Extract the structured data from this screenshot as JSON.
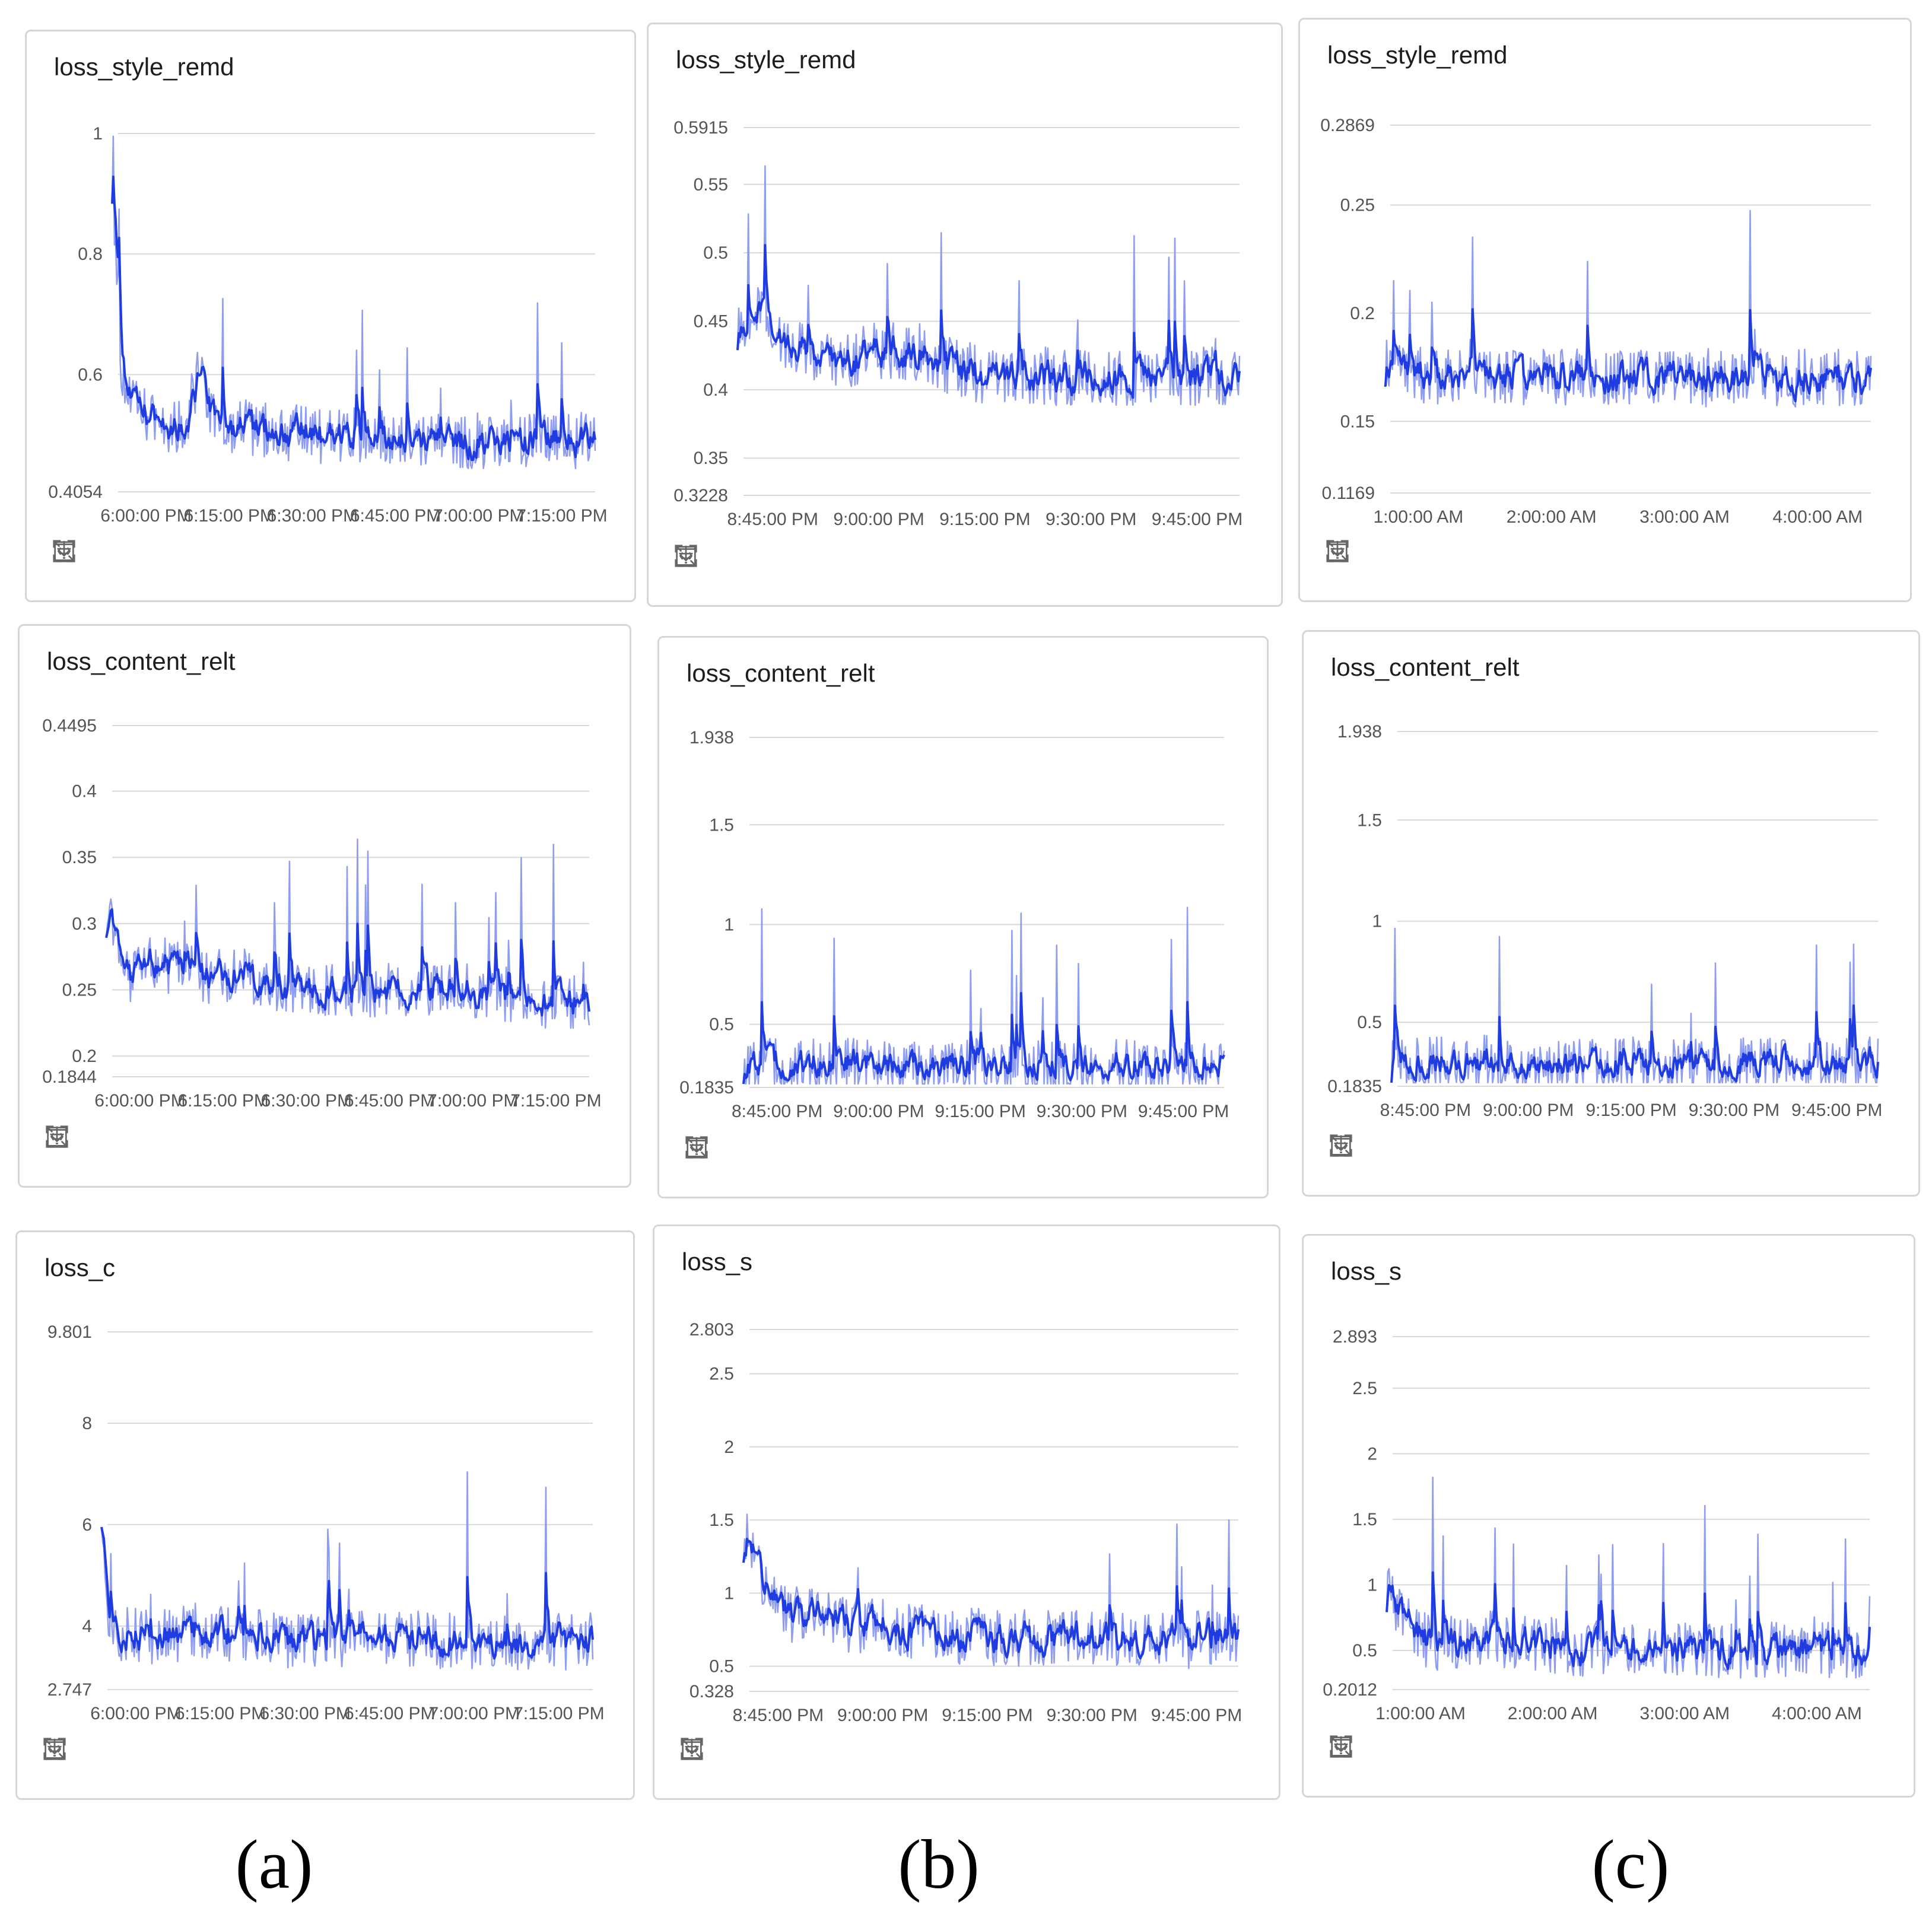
{
  "colors": {
    "line_light": "#8f9df0",
    "line_dark": "#1f3ce0",
    "grid": "#d9d9d9",
    "card_border": "#d6d6d6"
  },
  "toolbar_icons": [
    "expand-icon",
    "fit-icon",
    "filter-icon",
    "download-icon"
  ],
  "column_labels": [
    "(a)",
    "(b)",
    "(c)"
  ],
  "chart_data": [
    {
      "id": "a1",
      "type": "line",
      "title": "loss_style_remd",
      "yticks": [
        "1",
        "0.8",
        "0.6",
        "0.4054"
      ],
      "ylim": [
        0.4054,
        1.0
      ],
      "xticks": [
        "6:00:00 PM",
        "6:15:00 PM",
        "6:30:00 PM",
        "6:45:00 PM",
        "7:00:00 PM",
        "7:15:00 PM"
      ],
      "series": [
        {
          "x": [
            0,
            0.01,
            0.02,
            0.04,
            0.07,
            0.1,
            0.15,
            0.18,
            0.2,
            0.23,
            0.3,
            0.4,
            0.5,
            0.6,
            0.7,
            0.8,
            0.9,
            1.0
          ],
          "values": [
            0.93,
            0.75,
            0.6,
            0.55,
            0.53,
            0.52,
            0.51,
            0.6,
            0.54,
            0.52,
            0.51,
            0.5,
            0.5,
            0.49,
            0.49,
            0.49,
            0.49,
            0.49
          ]
        }
      ]
    },
    {
      "id": "b1",
      "type": "line",
      "title": "loss_style_remd",
      "yticks": [
        "0.5915",
        "0.55",
        "0.5",
        "0.45",
        "0.4",
        "0.35",
        "0.3228"
      ],
      "ylim": [
        0.3228,
        0.5915
      ],
      "xticks": [
        "8:45:00 PM",
        "9:00:00 PM",
        "9:15:00 PM",
        "9:30:00 PM",
        "9:45:00 PM"
      ],
      "series": [
        {
          "x": [
            0,
            0.05,
            0.1,
            0.2,
            0.3,
            0.4,
            0.5,
            0.6,
            0.7,
            0.8,
            0.9,
            1.0
          ],
          "values": [
            0.45,
            0.46,
            0.43,
            0.42,
            0.43,
            0.42,
            0.41,
            0.41,
            0.41,
            0.41,
            0.41,
            0.41
          ]
        }
      ]
    },
    {
      "id": "c1",
      "type": "line",
      "title": "loss_style_remd",
      "yticks": [
        "0.2869",
        "0.25",
        "0.2",
        "0.15",
        "0.1169"
      ],
      "ylim": [
        0.1169,
        0.2869
      ],
      "xticks": [
        "1:00:00 AM",
        "2:00:00 AM",
        "3:00:00 AM",
        "4:00:00 AM"
      ],
      "series": [
        {
          "x": [
            0,
            0.1,
            0.2,
            0.3,
            0.4,
            0.5,
            0.6,
            0.7,
            0.8,
            0.9,
            1.0
          ],
          "values": [
            0.18,
            0.17,
            0.17,
            0.17,
            0.17,
            0.17,
            0.17,
            0.17,
            0.17,
            0.17,
            0.17
          ]
        }
      ]
    },
    {
      "id": "a2",
      "type": "line",
      "title": "loss_content_relt",
      "yticks": [
        "0.4495",
        "0.4",
        "0.35",
        "0.3",
        "0.25",
        "0.2",
        "0.1844"
      ],
      "ylim": [
        0.1844,
        0.4495
      ],
      "xticks": [
        "6:00:00 PM",
        "6:15:00 PM",
        "6:30:00 PM",
        "6:45:00 PM",
        "7:00:00 PM",
        "7:15:00 PM"
      ],
      "series": [
        {
          "x": [
            0,
            0.05,
            0.1,
            0.2,
            0.3,
            0.4,
            0.5,
            0.6,
            0.7,
            0.8,
            0.9,
            1.0
          ],
          "values": [
            0.31,
            0.26,
            0.27,
            0.26,
            0.26,
            0.25,
            0.25,
            0.25,
            0.25,
            0.25,
            0.24,
            0.24
          ]
        }
      ]
    },
    {
      "id": "b2",
      "type": "line",
      "title": "loss_content_relt",
      "yticks": [
        "1.938",
        "1.5",
        "1",
        "0.5",
        "0.1835"
      ],
      "ylim": [
        0.1835,
        1.938
      ],
      "xticks": [
        "8:45:00 PM",
        "9:00:00 PM",
        "9:15:00 PM",
        "9:30:00 PM",
        "9:45:00 PM"
      ],
      "series": [
        {
          "x": [
            0,
            0.1,
            0.2,
            0.3,
            0.4,
            0.5,
            0.6,
            0.7,
            0.8,
            0.9,
            1.0
          ],
          "values": [
            0.3,
            0.28,
            0.3,
            0.28,
            0.28,
            0.29,
            0.28,
            0.28,
            0.29,
            0.28,
            0.29
          ]
        }
      ]
    },
    {
      "id": "c2",
      "type": "line",
      "title": "loss_content_relt",
      "yticks": [
        "1.938",
        "1.5",
        "1",
        "0.5",
        "0.1835"
      ],
      "ylim": [
        0.1835,
        1.938
      ],
      "xticks": [
        "8:45:00 PM",
        "9:00:00 PM",
        "9:15:00 PM",
        "9:30:00 PM",
        "9:45:00 PM"
      ],
      "series": [
        {
          "x": [
            0,
            0.1,
            0.2,
            0.3,
            0.4,
            0.5,
            0.6,
            0.7,
            0.8,
            0.9,
            1.0
          ],
          "values": [
            0.3,
            0.29,
            0.3,
            0.28,
            0.28,
            0.29,
            0.28,
            0.28,
            0.29,
            0.28,
            0.29
          ]
        }
      ]
    },
    {
      "id": "a3",
      "type": "line",
      "title": "loss_c",
      "yticks": [
        "9.801",
        "8",
        "6",
        "4",
        "2.747"
      ],
      "ylim": [
        2.747,
        9.801
      ],
      "xticks": [
        "6:00:00 PM",
        "6:15:00 PM",
        "6:30:00 PM",
        "6:45:00 PM",
        "7:00:00 PM",
        "7:15:00 PM"
      ],
      "series": [
        {
          "x": [
            0,
            0.01,
            0.03,
            0.1,
            0.2,
            0.3,
            0.4,
            0.5,
            0.6,
            0.7,
            0.8,
            0.9,
            1.0
          ],
          "values": [
            6.5,
            4.5,
            3.8,
            3.8,
            3.9,
            3.8,
            3.7,
            3.7,
            3.8,
            3.7,
            3.7,
            3.7,
            3.7
          ]
        }
      ]
    },
    {
      "id": "b3",
      "type": "line",
      "title": "loss_s",
      "yticks": [
        "2.803",
        "2.5",
        "2",
        "1.5",
        "1",
        "0.5",
        "0.328"
      ],
      "ylim": [
        0.328,
        2.803
      ],
      "xticks": [
        "8:45:00 PM",
        "9:00:00 PM",
        "9:15:00 PM",
        "9:30:00 PM",
        "9:45:00 PM"
      ],
      "series": [
        {
          "x": [
            0,
            0.05,
            0.1,
            0.2,
            0.3,
            0.4,
            0.5,
            0.6,
            0.7,
            0.8,
            0.9,
            1.0
          ],
          "values": [
            1.4,
            1.0,
            0.85,
            0.8,
            0.75,
            0.72,
            0.7,
            0.7,
            0.68,
            0.68,
            0.68,
            0.68
          ]
        }
      ]
    },
    {
      "id": "c3",
      "type": "line",
      "title": "loss_s",
      "yticks": [
        "2.893",
        "2.5",
        "2",
        "1.5",
        "1",
        "0.5",
        "0.2012"
      ],
      "ylim": [
        0.2012,
        2.893
      ],
      "xticks": [
        "1:00:00 AM",
        "2:00:00 AM",
        "3:00:00 AM",
        "4:00:00 AM"
      ],
      "series": [
        {
          "x": [
            0,
            0.05,
            0.1,
            0.2,
            0.3,
            0.4,
            0.5,
            0.6,
            0.7,
            0.8,
            0.9,
            1.0
          ],
          "values": [
            1.0,
            0.65,
            0.55,
            0.6,
            0.55,
            0.52,
            0.5,
            0.5,
            0.5,
            0.5,
            0.5,
            0.5
          ]
        }
      ]
    }
  ]
}
